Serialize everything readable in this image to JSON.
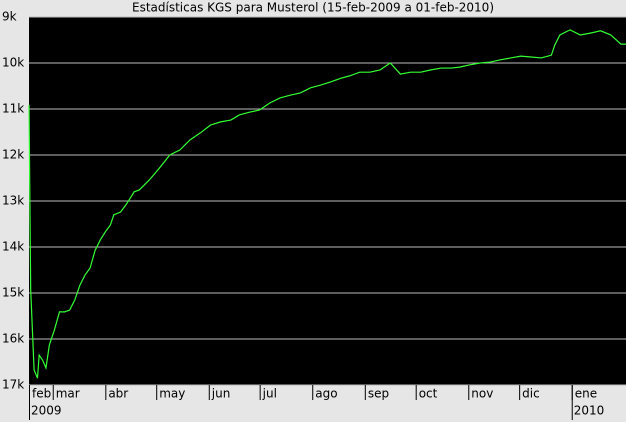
{
  "chart_data": {
    "type": "line",
    "title": "Estadísticas KGS para Musterol (15-feb-2009 a 01-feb-2010)",
    "x": [
      0,
      1,
      3,
      5,
      6,
      8,
      10,
      12,
      15,
      18,
      21,
      24,
      27,
      30,
      33,
      36,
      39,
      42,
      45,
      48,
      50,
      54,
      57,
      59,
      62,
      65,
      68,
      71,
      77,
      83,
      89,
      95,
      101,
      107,
      113,
      119,
      124,
      130,
      136,
      142,
      148,
      154,
      160,
      166,
      172,
      178,
      184,
      189,
      195,
      201,
      207,
      213,
      219,
      225,
      231,
      237,
      243,
      249,
      254,
      260,
      266,
      272,
      278,
      284,
      290,
      296,
      302,
      308,
      310,
      313,
      319,
      325,
      331,
      337,
      343,
      349,
      352
    ],
    "series": [
      {
        "color": "#33ff33",
        "values": [
          10.91,
          14.93,
          16.67,
          16.85,
          16.35,
          16.46,
          16.63,
          16.13,
          15.8,
          15.41,
          15.41,
          15.37,
          15.15,
          14.83,
          14.61,
          14.46,
          14.07,
          13.85,
          13.67,
          13.52,
          13.3,
          13.24,
          13.09,
          12.98,
          12.8,
          12.76,
          12.65,
          12.54,
          12.28,
          12.0,
          11.89,
          11.67,
          11.52,
          11.35,
          11.28,
          11.24,
          11.13,
          11.07,
          11.02,
          10.87,
          10.76,
          10.7,
          10.65,
          10.54,
          10.48,
          10.41,
          10.33,
          10.28,
          10.2,
          10.2,
          10.15,
          10.0,
          10.24,
          10.2,
          10.2,
          10.15,
          10.11,
          10.11,
          10.09,
          10.04,
          10.0,
          9.98,
          9.93,
          9.89,
          9.85,
          9.87,
          9.89,
          9.83,
          9.61,
          9.39,
          9.28,
          9.39,
          9.35,
          9.3,
          9.39,
          9.59,
          9.59
        ]
      }
    ],
    "xlim": [
      0,
      352
    ],
    "xticks": [
      {
        "value": 0,
        "label": "feb"
      },
      {
        "value": 14,
        "label": "mar"
      },
      {
        "value": 45,
        "label": "abr"
      },
      {
        "value": 75,
        "label": "may"
      },
      {
        "value": 106,
        "label": "jun"
      },
      {
        "value": 136,
        "label": "jul"
      },
      {
        "value": 167,
        "label": "ago"
      },
      {
        "value": 198,
        "label": "sep"
      },
      {
        "value": 228,
        "label": "oct"
      },
      {
        "value": 259,
        "label": "nov"
      },
      {
        "value": 289,
        "label": "dic"
      },
      {
        "value": 320,
        "label": "ene"
      }
    ],
    "years": [
      {
        "value": 0,
        "label": "2009"
      },
      {
        "value": 320,
        "label": "2010"
      }
    ],
    "ylim": [
      17,
      9
    ],
    "yticks": [
      {
        "value": 9,
        "label": "9k"
      },
      {
        "value": 10,
        "label": "10k"
      },
      {
        "value": 11,
        "label": "11k"
      },
      {
        "value": 12,
        "label": "12k"
      },
      {
        "value": 13,
        "label": "13k"
      },
      {
        "value": 14,
        "label": "14k"
      },
      {
        "value": 15,
        "label": "15k"
      },
      {
        "value": 16,
        "label": "16k"
      },
      {
        "value": 17,
        "label": "17k"
      }
    ],
    "grid": true
  }
}
